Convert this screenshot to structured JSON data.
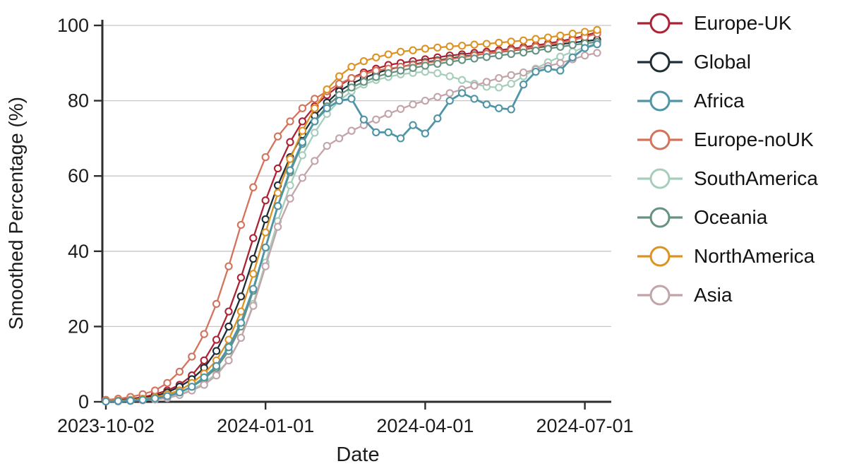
{
  "figure": {
    "background": "#ffffff"
  },
  "chart_data": {
    "type": "line",
    "title": "",
    "xlabel": "Date",
    "ylabel": "Smoothed Percentage (%)",
    "ylim": [
      0,
      100
    ],
    "yticks": [
      0,
      20,
      40,
      60,
      80,
      100
    ],
    "xticks": [
      {
        "week_index": 0,
        "label": "2023-10-02"
      },
      {
        "week_index": 13,
        "label": "2024-01-01"
      },
      {
        "week_index": 26,
        "label": "2024-04-01"
      },
      {
        "week_index": 39,
        "label": "2024-07-01"
      }
    ],
    "grid": "horizontal",
    "legend_position": "right",
    "marker": "open-circle",
    "x_weekly_dates": [
      "2023-10-02",
      "2023-10-09",
      "2023-10-16",
      "2023-10-23",
      "2023-10-30",
      "2023-11-06",
      "2023-11-13",
      "2023-11-20",
      "2023-11-27",
      "2023-12-04",
      "2023-12-11",
      "2023-12-18",
      "2023-12-25",
      "2024-01-01",
      "2024-01-08",
      "2024-01-15",
      "2024-01-22",
      "2024-01-29",
      "2024-02-05",
      "2024-02-12",
      "2024-02-19",
      "2024-02-26",
      "2024-03-04",
      "2024-03-11",
      "2024-03-18",
      "2024-03-25",
      "2024-04-01",
      "2024-04-08",
      "2024-04-15",
      "2024-04-22",
      "2024-04-29",
      "2024-05-06",
      "2024-05-13",
      "2024-05-20",
      "2024-05-27",
      "2024-06-03",
      "2024-06-10",
      "2024-06-17",
      "2024-06-24",
      "2024-07-01",
      "2024-07-08"
    ],
    "series": [
      {
        "name": "Europe-UK",
        "color": "#ab2334",
        "values": [
          0.3,
          0.5,
          0.8,
          1.2,
          2,
          3,
          4.5,
          7,
          11,
          16.5,
          24,
          33,
          43.5,
          53.5,
          62,
          69,
          74.5,
          78.5,
          81.5,
          84,
          86,
          87.5,
          88.5,
          89.5,
          90,
          90.5,
          91,
          91.5,
          92,
          92.3,
          92.7,
          93,
          93.4,
          93.8,
          94.2,
          94.7,
          95.2,
          95.8,
          96.5,
          97.3,
          98.2
        ]
      },
      {
        "name": "Global",
        "color": "#1f2d36",
        "values": [
          0.2,
          0.4,
          0.6,
          1,
          1.5,
          2.5,
          4,
          6,
          9,
          13.5,
          20,
          28,
          38,
          48.5,
          57.5,
          65,
          71,
          76,
          79.5,
          82.5,
          84.5,
          86,
          87.3,
          88.3,
          89,
          89.6,
          90.2,
          90.7,
          91.2,
          91.7,
          92.1,
          92.5,
          92.9,
          93.3,
          93.7,
          94.1,
          94.5,
          95,
          95.4,
          95.8,
          96.2
        ]
      },
      {
        "name": "Africa",
        "color": "#4f95a6",
        "values": [
          0.1,
          0.2,
          0.3,
          0.5,
          0.9,
          1.5,
          2.5,
          4,
          6.5,
          9.5,
          14.5,
          21,
          30,
          41,
          52,
          61.5,
          69,
          74.5,
          78,
          80,
          80.5,
          75,
          71.6,
          71.6,
          70,
          73.5,
          71.3,
          75.3,
          80,
          82,
          80.5,
          79,
          78,
          77.7,
          84.3,
          87.7,
          88.5,
          88,
          91.5,
          94,
          95
        ]
      },
      {
        "name": "Europe-noUK",
        "color": "#d4735c",
        "values": [
          0.5,
          0.8,
          1.3,
          2,
          3,
          5,
          8,
          12,
          18,
          26,
          36,
          47,
          57,
          65,
          70.5,
          74.5,
          78,
          80.5,
          82.5,
          84.5,
          86,
          87,
          88,
          88.5,
          89,
          89.5,
          90,
          90.5,
          91,
          91.5,
          92,
          92.5,
          93,
          93.4,
          93.8,
          94.3,
          94.8,
          95.4,
          96.1,
          96.9,
          97.8
        ]
      },
      {
        "name": "SouthAmerica",
        "color": "#a6cebb",
        "values": [
          0.1,
          0.2,
          0.3,
          0.5,
          0.8,
          1.2,
          2,
          3.2,
          5,
          7.5,
          11,
          17,
          26,
          37,
          48,
          57.5,
          65.5,
          71.5,
          76.5,
          80,
          82.5,
          84.3,
          85.5,
          86.3,
          87,
          87.4,
          87.7,
          87.3,
          86.5,
          85.5,
          84.5,
          83.7,
          83.5,
          84.5,
          86.5,
          88.5,
          90.2,
          91.7,
          93,
          94.2,
          95.3
        ]
      },
      {
        "name": "Oceania",
        "color": "#67927f",
        "values": [
          0.1,
          0.2,
          0.4,
          0.6,
          1,
          1.5,
          2.5,
          4,
          6,
          9,
          13.5,
          20,
          29.5,
          41,
          52,
          61,
          68.5,
          74.5,
          78.5,
          81.5,
          83.5,
          85,
          86.3,
          87.3,
          88,
          88.7,
          89.3,
          89.8,
          90.3,
          90.8,
          91.2,
          91.6,
          92,
          92.4,
          92.8,
          93.3,
          93.8,
          94.3,
          94.8,
          95.2,
          95.6
        ]
      },
      {
        "name": "NorthAmerica",
        "color": "#dd9323",
        "values": [
          0.2,
          0.3,
          0.5,
          0.8,
          1.2,
          2,
          3,
          5,
          7.5,
          11,
          16.5,
          24,
          34,
          45,
          55.5,
          64.5,
          72,
          78,
          83,
          86.5,
          89,
          90.5,
          91.5,
          92.3,
          93,
          93.4,
          93.8,
          94.1,
          94.4,
          94.6,
          94.9,
          95.1,
          95.4,
          95.7,
          96,
          96.4,
          96.8,
          97.3,
          97.8,
          98.3,
          98.8
        ]
      },
      {
        "name": "Asia",
        "color": "#c3a4a9",
        "values": [
          0.1,
          0.1,
          0.2,
          0.4,
          0.6,
          1,
          1.8,
          3,
          4.5,
          7,
          11,
          17,
          25.5,
          36,
          46.5,
          54,
          59.5,
          64,
          68,
          70,
          72,
          73.5,
          75,
          76.5,
          77.8,
          79,
          80,
          81,
          82,
          83,
          84,
          85,
          86,
          86.8,
          87.5,
          88.3,
          89.2,
          90,
          91,
          92,
          92.7
        ]
      }
    ],
    "style": {
      "grid_color": "#c7c7c7",
      "axis_color": "#2e2e2e",
      "marker_fill": "#ffffff"
    }
  }
}
